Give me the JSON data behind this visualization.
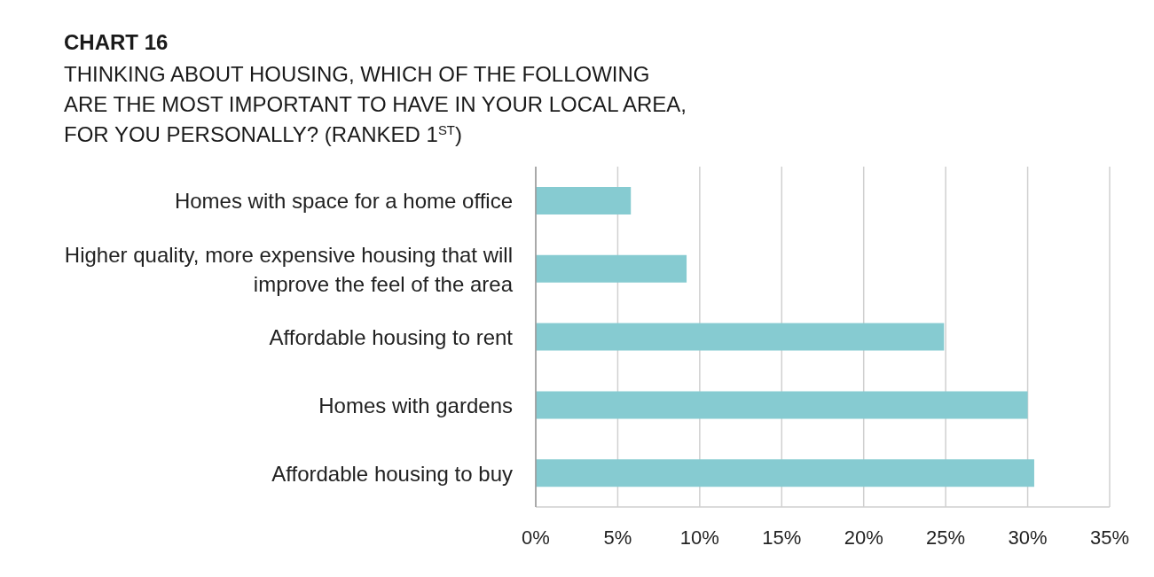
{
  "chart_data": {
    "type": "bar",
    "orientation": "horizontal",
    "title": "CHART 16",
    "subtitle": "THINKING ABOUT HOUSING, WHICH OF THE FOLLOWING ARE THE MOST IMPORTANT TO HAVE IN YOUR LOCAL AREA, FOR YOU PERSONALLY? (RANKED 1$^{ST}$)",
    "categories": [
      "Homes with space for a home office",
      "Higher quality, more expensive housing that will improve the feel of the area",
      "Affordable housing to rent",
      "Homes with gardens",
      "Affordable housing to buy"
    ],
    "values": [
      5.8,
      9.2,
      24.9,
      30.0,
      30.4
    ],
    "color": "#86cbd1",
    "xlim": [
      0,
      35
    ],
    "xticks": [
      {
        "value": 0,
        "label": "0%"
      },
      {
        "value": 5,
        "label": "5%"
      },
      {
        "value": 10,
        "label": "10%"
      },
      {
        "value": 15,
        "label": "15%"
      },
      {
        "value": 20,
        "label": "20%"
      },
      {
        "value": 25,
        "label": "25%"
      },
      {
        "value": 30,
        "label": "30%"
      },
      {
        "value": 35,
        "label": "35%"
      }
    ],
    "grid": "x"
  }
}
